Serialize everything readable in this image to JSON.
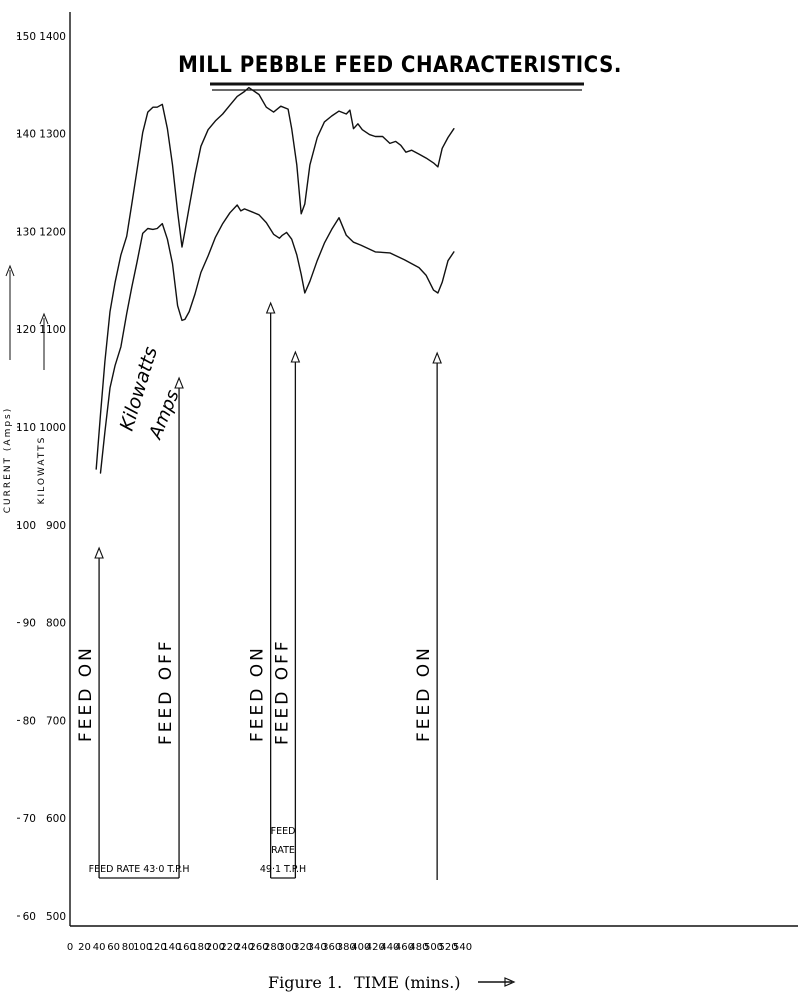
{
  "chart_data": {
    "type": "line",
    "title": "MILL PEBBLE FEED CHARACTERISTICS.",
    "caption_figure": "Figure 1.",
    "xlabel": "TIME (mins.)",
    "ylabel_current": "CURRENT (Amps)",
    "ylabel_power": "KILOWATTS",
    "x_ticks": [
      "0",
      "20",
      "40",
      "60",
      "80",
      "100",
      "120",
      "140",
      "160",
      "180",
      "200",
      "220",
      "240",
      "260",
      "280",
      "300",
      "320",
      "340",
      "360",
      "380",
      "400",
      "420",
      "440",
      "460",
      "480",
      "500",
      "520",
      "540"
    ],
    "y_ticks_current": [
      "60",
      "70",
      "80",
      "90",
      "100",
      "110",
      "120",
      "130",
      "140",
      "150"
    ],
    "y_ticks_power": [
      "500",
      "600",
      "700",
      "800",
      "900",
      "1000",
      "1100",
      "1200",
      "1300",
      "1400"
    ],
    "xlim": [
      0,
      540
    ],
    "ylim_power": [
      500,
      1400
    ],
    "series": [
      {
        "name": "Kilowatts",
        "x": [
          36,
          42,
          48,
          55,
          62,
          70,
          78,
          85,
          92,
          100,
          107,
          114,
          120,
          127,
          134,
          141,
          148,
          154,
          158,
          164,
          172,
          180,
          190,
          200,
          210,
          220,
          230,
          240,
          246,
          252,
          260,
          270,
          280,
          290,
          300,
          305,
          312,
          318,
          323,
          330,
          340,
          350,
          360,
          370,
          380,
          385,
          390,
          396,
          402,
          412,
          420,
          430,
          440,
          448,
          455,
          462,
          470,
          480,
          490,
          500,
          506,
          512,
          520,
          528
        ],
        "values": [
          957,
          1013,
          1067,
          1118,
          1148,
          1176,
          1195,
          1228,
          1262,
          1301,
          1322,
          1327,
          1327,
          1330,
          1305,
          1268,
          1220,
          1184,
          1200,
          1225,
          1258,
          1287,
          1304,
          1313,
          1320,
          1329,
          1338,
          1343,
          1347,
          1344,
          1340,
          1327,
          1322,
          1328,
          1325,
          1305,
          1268,
          1218,
          1228,
          1268,
          1296,
          1312,
          1318,
          1323,
          1320,
          1324,
          1305,
          1310,
          1304,
          1299,
          1297,
          1297,
          1290,
          1292,
          1288,
          1281,
          1283,
          1279,
          1275,
          1270,
          1266,
          1285,
          1296,
          1305
        ]
      },
      {
        "name": "Amps",
        "x": [
          42,
          48,
          55,
          62,
          70,
          78,
          85,
          92,
          100,
          107,
          114,
          120,
          127,
          134,
          141,
          148,
          154,
          158,
          164,
          172,
          180,
          190,
          200,
          210,
          220,
          230,
          235,
          240,
          250,
          260,
          270,
          280,
          288,
          292,
          298,
          305,
          312,
          318,
          323,
          330,
          340,
          350,
          360,
          370,
          380,
          390,
          400,
          420,
          440,
          460,
          480,
          490,
          500,
          506,
          512,
          520,
          528
        ],
        "values": [
          953,
          995,
          1040,
          1063,
          1082,
          1116,
          1143,
          1168,
          1198,
          1203,
          1202,
          1203,
          1208,
          1192,
          1167,
          1124,
          1109,
          1110,
          1118,
          1136,
          1158,
          1175,
          1194,
          1208,
          1219,
          1227,
          1221,
          1223,
          1220,
          1217,
          1209,
          1197,
          1193,
          1196,
          1199,
          1192,
          1176,
          1156,
          1137,
          1149,
          1170,
          1188,
          1202,
          1214,
          1196,
          1189,
          1186,
          1179,
          1178,
          1171,
          1163,
          1155,
          1140,
          1137,
          1148,
          1170,
          1179
        ]
      }
    ],
    "annotations": [
      {
        "text": "FEED ON",
        "x": 40
      },
      {
        "text": "FEED OFF",
        "x": 150
      },
      {
        "text": "FEED ON",
        "x": 276
      },
      {
        "text": "FEED OFF",
        "x": 310
      },
      {
        "text": "FEED ON",
        "x": 505
      }
    ],
    "feed_boxes": [
      {
        "lines": [
          "FEED RATE 43·0 T.P.H"
        ],
        "x_start": 40,
        "x_end": 150
      },
      {
        "lines": [
          "FEED",
          "RATE",
          "49·1 T.P.H"
        ],
        "x_start": 276,
        "x_end": 310
      }
    ]
  }
}
